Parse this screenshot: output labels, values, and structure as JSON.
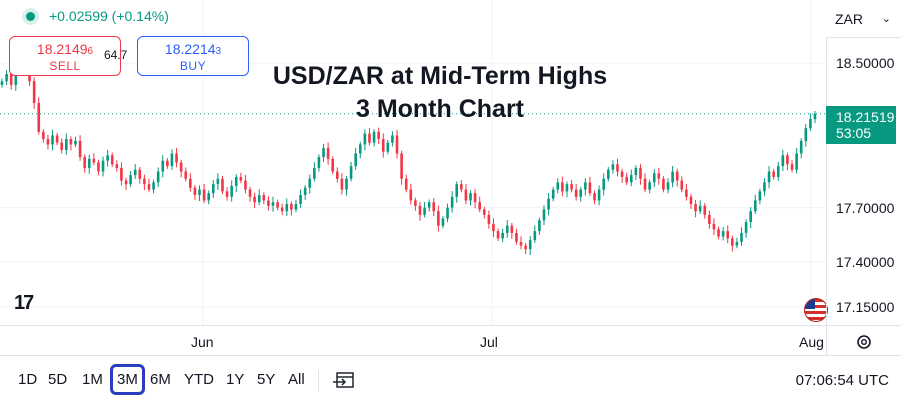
{
  "status": {
    "change": "+0.02599 (+0.14%)"
  },
  "sell": {
    "price_main": "18.2149",
    "price_small": "6",
    "label": "SELL"
  },
  "buy": {
    "price_main": "18.2214",
    "price_small": "3",
    "label": "BUY"
  },
  "spread": "64.7",
  "currency_select": "ZAR",
  "current_price": {
    "price": "18.21519",
    "countdown": "53:05"
  },
  "time_ranges": [
    "1D",
    "5D",
    "1M",
    "3M",
    "6M",
    "YTD",
    "1Y",
    "5Y",
    "All"
  ],
  "active_range": "3M",
  "clock": "07:06:54 UTC",
  "colors": {
    "up": "#089981",
    "down": "#f23645",
    "accent": "#2962ff",
    "active_border": "#2b3dbf"
  },
  "chart_data": {
    "type": "candlestick",
    "title": "USD/ZAR at Mid-Term Highs",
    "subtitle": "3 Month Chart",
    "x_tick_labels": [
      "Jun",
      "Jul",
      "Aug"
    ],
    "y_tick_labels": [
      "18.50000",
      "17.70000",
      "17.40000",
      "17.15000"
    ],
    "y_ticks": [
      18.5,
      17.7,
      17.4,
      17.15
    ],
    "ylim": [
      17.05,
      18.85
    ],
    "grid": true,
    "closes": [
      18.4,
      18.44,
      18.38,
      18.46,
      18.55,
      18.48,
      18.4,
      18.28,
      18.12,
      18.08,
      18.05,
      18.1,
      18.06,
      18.02,
      18.08,
      18.05,
      18.07,
      17.98,
      17.92,
      17.97,
      17.95,
      17.9,
      17.96,
      17.99,
      17.94,
      17.92,
      17.85,
      17.83,
      17.88,
      17.91,
      17.86,
      17.83,
      17.8,
      17.84,
      17.9,
      17.96,
      17.93,
      18.0,
      17.95,
      17.9,
      17.86,
      17.81,
      17.77,
      17.8,
      17.74,
      17.78,
      17.83,
      17.86,
      17.79,
      17.76,
      17.82,
      17.87,
      17.85,
      17.8,
      17.76,
      17.73,
      17.77,
      17.74,
      17.71,
      17.73,
      17.7,
      17.68,
      17.72,
      17.69,
      17.72,
      17.77,
      17.81,
      17.86,
      17.92,
      17.98,
      18.03,
      17.97,
      17.9,
      17.86,
      17.8,
      17.86,
      17.93,
      18.0,
      18.05,
      18.11,
      18.06,
      18.12,
      18.08,
      18.01,
      18.06,
      18.1,
      18.0,
      17.86,
      17.8,
      17.74,
      17.71,
      17.66,
      17.7,
      17.73,
      17.68,
      17.6,
      17.64,
      17.7,
      17.76,
      17.83,
      17.8,
      17.74,
      17.78,
      17.73,
      17.69,
      17.66,
      17.61,
      17.57,
      17.53,
      17.56,
      17.6,
      17.56,
      17.51,
      17.49,
      17.47,
      17.52,
      17.57,
      17.63,
      17.69,
      17.75,
      17.8,
      17.84,
      17.79,
      17.83,
      17.8,
      17.76,
      17.8,
      17.84,
      17.78,
      17.74,
      17.8,
      17.86,
      17.91,
      17.94,
      17.9,
      17.87,
      17.84,
      17.88,
      17.92,
      17.86,
      17.8,
      17.84,
      17.89,
      17.86,
      17.8,
      17.84,
      17.9,
      17.85,
      17.8,
      17.76,
      17.72,
      17.68,
      17.71,
      17.66,
      17.61,
      17.58,
      17.54,
      17.57,
      17.53,
      17.49,
      17.51,
      17.56,
      17.62,
      17.68,
      17.74,
      17.79,
      17.84,
      17.9,
      17.87,
      17.93,
      17.99,
      17.94,
      17.91,
      18.0,
      18.07,
      18.14,
      18.19,
      18.22
    ]
  }
}
